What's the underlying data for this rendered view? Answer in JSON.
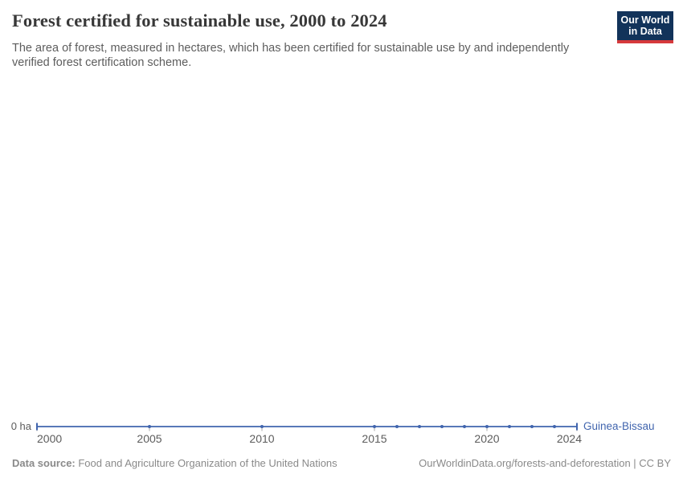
{
  "header": {
    "title": "Forest certified for sustainable use, 2000 to 2024",
    "subtitle": "The area of forest, measured in hectares, which has been certified for sustainable use by and independently verified forest certification scheme.",
    "logo": {
      "line1": "Our World",
      "line2": "in Data",
      "bg_color": "#12335a",
      "bar_color": "#d6393c",
      "text_color": "#ffffff"
    }
  },
  "chart_data": {
    "type": "line",
    "title": "Forest certified for sustainable use, 2000 to 2024",
    "xlabel": "",
    "ylabel": "",
    "unit": "hectares",
    "grid": false,
    "legend_position": "end-of-line label",
    "xlim": [
      2000,
      2024
    ],
    "x": [
      2000,
      2005,
      2010,
      2015,
      2016,
      2017,
      2018,
      2019,
      2020,
      2021,
      2022,
      2023,
      2024
    ],
    "series": [
      {
        "name": "Guinea-Bissau",
        "color": "#4165ae",
        "values": [
          0,
          0,
          0,
          0,
          0,
          0,
          0,
          0,
          0,
          0,
          0,
          0,
          0
        ]
      }
    ],
    "x_ticks": [
      "2000",
      "2005",
      "2010",
      "2015",
      "2020",
      "2024"
    ],
    "x_tick_years": [
      2000,
      2005,
      2010,
      2015,
      2020,
      2024
    ],
    "y_tick_labels": [
      "0 ha"
    ],
    "axis_tick_color": "#a6a6a6"
  },
  "footer": {
    "source_label": "Data source:",
    "source_text": " Food and Agriculture Organization of the United Nations",
    "attribution": "OurWorldinData.org/forests-and-deforestation | CC BY"
  }
}
